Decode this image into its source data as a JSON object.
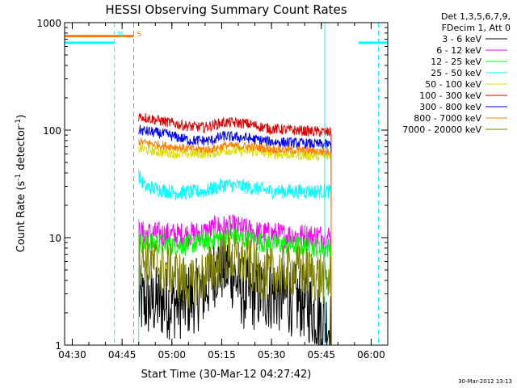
{
  "chart_data": {
    "type": "line",
    "title": "HESSI Observing Summary Count Rates",
    "xlabel": "Start Time (30-Mar-12 04:27:42)",
    "ylabel_parts": [
      "Count Rate (s",
      "-1",
      " detector",
      "-1",
      ")"
    ],
    "ylabel": "Count Rate (s-1 detector-1)",
    "x_units": "minutes since 04:27:42 UT",
    "xlim": [
      0,
      97.3
    ],
    "ylim": [
      1,
      1000
    ],
    "y_scale": "log",
    "x_ticks": [
      {
        "label": "04:30",
        "x": 2.3
      },
      {
        "label": "04:45",
        "x": 17.3
      },
      {
        "label": "05:00",
        "x": 32.3
      },
      {
        "label": "05:15",
        "x": 47.3
      },
      {
        "label": "05:30",
        "x": 62.3
      },
      {
        "label": "05:45",
        "x": 77.3
      },
      {
        "label": "06:00",
        "x": 92.3
      }
    ],
    "y_ticks": [
      {
        "label": "1",
        "y": 1
      },
      {
        "label": "10",
        "y": 10
      },
      {
        "label": "100",
        "y": 100
      },
      {
        "label": "1000",
        "y": 1000
      }
    ],
    "legend_header": [
      "Det 1,3,5,6,7,9,",
      "FDecim 1, Att 0"
    ],
    "legend_position": "right",
    "series": [
      {
        "name": "3 - 6 keV",
        "color": "#000000",
        "base": [
          [
            22.3,
            2.5
          ],
          [
            36,
            2.5
          ],
          [
            42,
            3.2
          ],
          [
            46,
            5.5
          ],
          [
            50,
            5.0
          ],
          [
            54,
            3.0
          ],
          [
            62,
            3.0
          ],
          [
            72,
            2.5
          ],
          [
            80,
            1.5
          ]
        ],
        "noise": 0.35
      },
      {
        "name": "6 - 12 keV",
        "color": "#ff00ff",
        "base": [
          [
            22.3,
            11
          ],
          [
            34,
            10.5
          ],
          [
            42,
            11
          ],
          [
            46,
            12.5
          ],
          [
            52,
            12.3
          ],
          [
            58,
            11
          ],
          [
            66,
            10.5
          ],
          [
            80,
            10.2
          ]
        ],
        "noise": 0.12
      },
      {
        "name": "12 - 25 keV",
        "color": "#00ff00",
        "base": [
          [
            22.3,
            9
          ],
          [
            36,
            8.5
          ],
          [
            44,
            9.5
          ],
          [
            48,
            10.3
          ],
          [
            54,
            9.8
          ],
          [
            62,
            8.8
          ],
          [
            80,
            8.0
          ]
        ],
        "noise": 0.1
      },
      {
        "name": "25 - 50 keV",
        "color": "#00ffff",
        "base": [
          [
            22.3,
            38
          ],
          [
            24,
            30
          ],
          [
            34,
            26
          ],
          [
            42,
            27
          ],
          [
            48,
            31
          ],
          [
            54,
            30
          ],
          [
            62,
            27
          ],
          [
            80,
            27
          ]
        ],
        "noise": 0.07
      },
      {
        "name": "50 - 100 keV",
        "color": "#dddd00",
        "base": [
          [
            22.3,
            68
          ],
          [
            28,
            63
          ],
          [
            36,
            60
          ],
          [
            44,
            61
          ],
          [
            48,
            65
          ],
          [
            56,
            64
          ],
          [
            64,
            60
          ],
          [
            80,
            57
          ]
        ],
        "noise": 0.05
      },
      {
        "name": "100 - 300 keV",
        "color": "#e00000",
        "base": [
          [
            22.3,
            135
          ],
          [
            30,
            120
          ],
          [
            38,
            108
          ],
          [
            42,
            106
          ],
          [
            48,
            118
          ],
          [
            54,
            116
          ],
          [
            62,
            103
          ],
          [
            80,
            95
          ]
        ],
        "noise": 0.05
      },
      {
        "name": "300 - 800 keV",
        "color": "#0000ff",
        "base": [
          [
            22.3,
            100
          ],
          [
            30,
            92
          ],
          [
            38,
            80
          ],
          [
            44,
            80
          ],
          [
            48,
            88
          ],
          [
            54,
            85
          ],
          [
            62,
            78
          ],
          [
            80,
            73
          ]
        ],
        "noise": 0.05
      },
      {
        "name": "800 - 7000 keV",
        "color": "#ff8000",
        "base": [
          [
            22.3,
            78
          ],
          [
            30,
            72
          ],
          [
            38,
            67
          ],
          [
            44,
            66
          ],
          [
            48,
            72
          ],
          [
            56,
            70
          ],
          [
            64,
            66
          ],
          [
            80,
            63
          ]
        ],
        "noise": 0.04
      },
      {
        "name": "7000 - 20000 keV",
        "color": "#808000",
        "base": [
          [
            22.3,
            6.5
          ],
          [
            32,
            5.0
          ],
          [
            38,
            3.5
          ],
          [
            44,
            5.0
          ],
          [
            48,
            6.5
          ],
          [
            54,
            6.0
          ],
          [
            60,
            4.5
          ],
          [
            70,
            5.0
          ],
          [
            80,
            4.0
          ]
        ],
        "noise": 0.25
      }
    ],
    "markers": [
      {
        "label": "N",
        "x": 15.0,
        "color": "#00ffff",
        "style": "dashed"
      },
      {
        "label": "S",
        "x": 20.8,
        "color": "#ff8000",
        "style": "dashed"
      },
      {
        "label": "",
        "x": 94.5,
        "color": "#00ffff",
        "style": "dashed"
      }
    ],
    "state_bars": [
      {
        "label": "S",
        "x0": 0,
        "x1": 20.8,
        "y": 750,
        "color": "#ff8000"
      },
      {
        "label": "N",
        "x0": 0,
        "x1": 15.0,
        "y": 650,
        "color": "#00ffff"
      },
      {
        "label": "",
        "x0": 88.5,
        "x1": 97.3,
        "y": 650,
        "color": "#00ffff"
      }
    ],
    "solid_lines": [
      {
        "x": 22.3,
        "color": "#00ffff",
        "from": 1,
        "to": 15
      },
      {
        "x": 78.3,
        "color": "#00ffff",
        "from": 1,
        "to": 1000
      }
    ],
    "data_range": [
      22.3,
      80.3
    ],
    "grid": false
  },
  "footer": {
    "date": "30-Mar-2012 13:13"
  }
}
